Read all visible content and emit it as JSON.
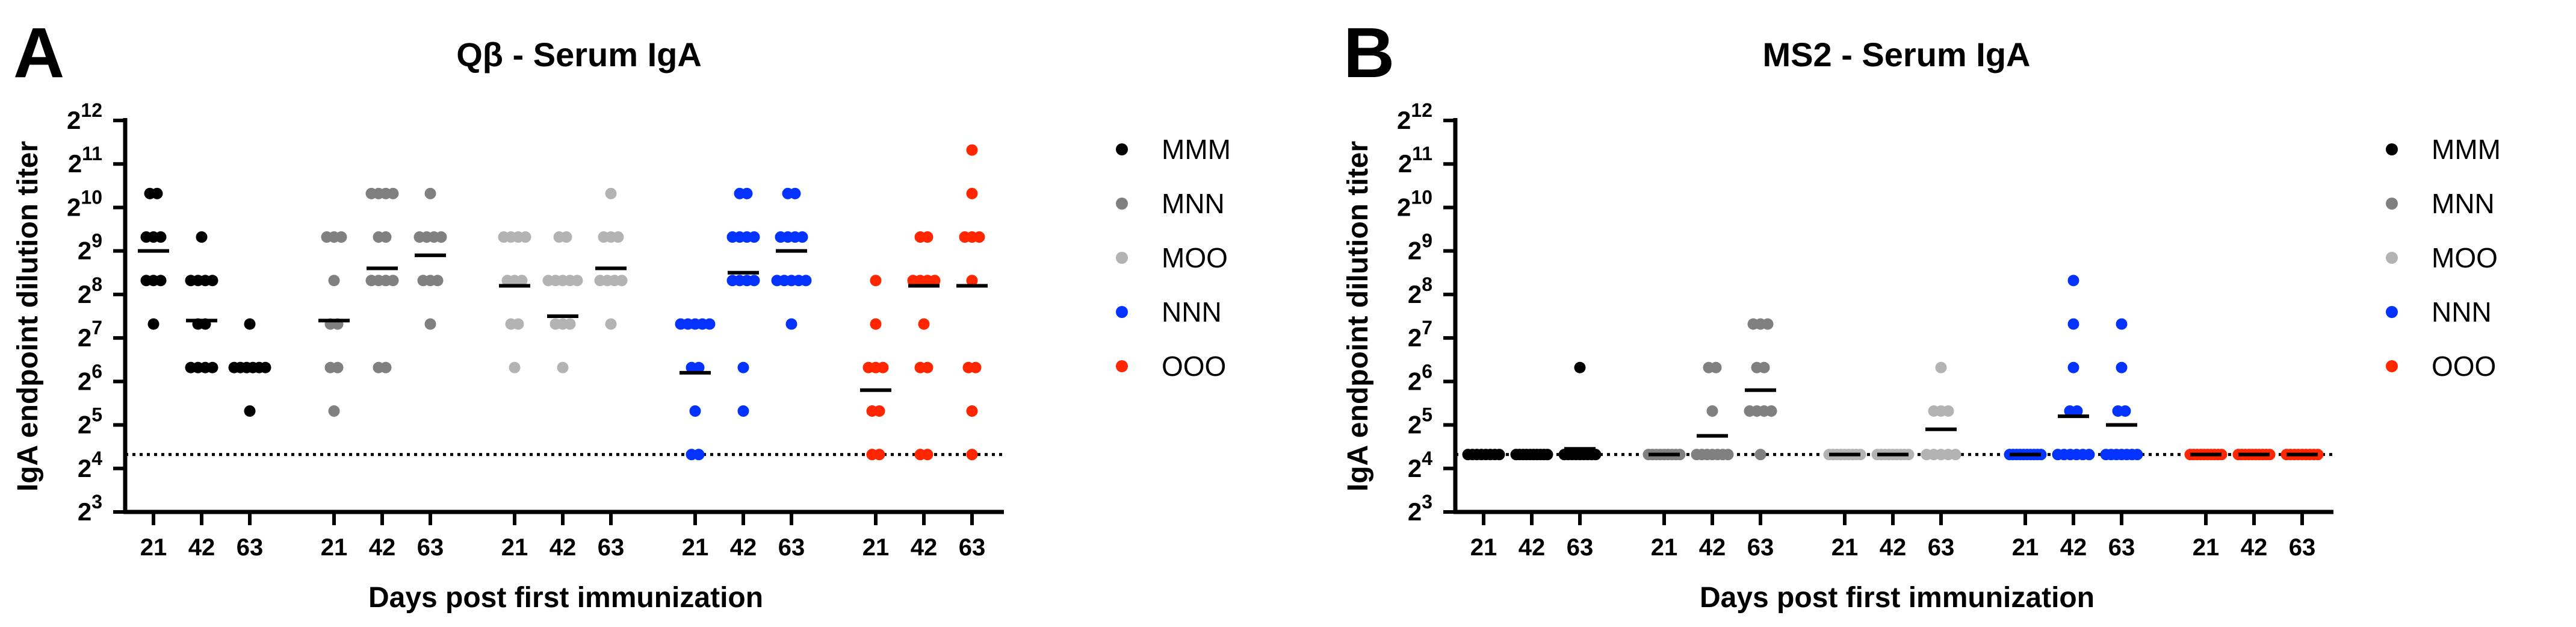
{
  "chart_data": [
    {
      "panel_letter": "A",
      "type": "scatter",
      "title": "Qβ - Serum IgA",
      "ylabel": "IgA endpoint dilution titer",
      "xlabel": "Days post first immunization",
      "y_scale": "log2",
      "y_tick_base": "2",
      "y_tick_exponents": [
        "3",
        "4",
        "5",
        "6",
        "7",
        "8",
        "9",
        "10",
        "11",
        "12"
      ],
      "ylim": [
        3,
        12
      ],
      "detection_limit": 4.32,
      "days": [
        "21",
        "42",
        "63"
      ],
      "legend": {
        "placement": "right",
        "entries": [
          "MMM",
          "MNN",
          "MOO",
          "NNN",
          "OOO"
        ]
      },
      "series": [
        {
          "name": "MMM",
          "color": "#000000",
          "points": [
            [
              10.32,
              10.32,
              9.32,
              9.32,
              9.32,
              8.32,
              8.32,
              8.32,
              7.32
            ],
            [
              9.32,
              8.32,
              8.32,
              8.32,
              8.32,
              6.32,
              6.32,
              6.32,
              6.32,
              7.32,
              7.32
            ],
            [
              7.32,
              6.32,
              6.32,
              6.32,
              6.32,
              6.32,
              6.32,
              5.32
            ]
          ],
          "means": [
            9.0,
            7.4,
            6.3
          ]
        },
        {
          "name": "MNN",
          "color": "#808080",
          "points": [
            [
              9.32,
              9.32,
              9.32,
              8.32,
              7.32,
              7.32,
              6.32,
              6.32,
              5.32
            ],
            [
              10.32,
              10.32,
              10.32,
              10.32,
              9.32,
              9.32,
              8.32,
              8.32,
              8.32,
              8.32,
              6.32,
              6.32
            ],
            [
              10.32,
              9.32,
              9.32,
              9.32,
              9.32,
              8.32,
              8.32,
              8.32,
              7.32
            ]
          ],
          "means": [
            7.4,
            8.6,
            8.9
          ]
        },
        {
          "name": "MOO",
          "color": "#b3b3b3",
          "points": [
            [
              9.32,
              9.32,
              9.32,
              9.32,
              8.32,
              8.32,
              8.32,
              7.32,
              7.32,
              6.32
            ],
            [
              9.32,
              9.32,
              8.32,
              8.32,
              8.32,
              8.32,
              8.32,
              7.32,
              7.32,
              7.32,
              6.32
            ],
            [
              10.32,
              9.32,
              9.32,
              9.32,
              8.32,
              8.32,
              8.32,
              8.32,
              7.32
            ]
          ],
          "means": [
            8.2,
            7.5,
            8.6
          ]
        },
        {
          "name": "NNN",
          "color": "#0433ff",
          "points": [
            [
              7.32,
              7.32,
              7.32,
              7.32,
              7.32,
              6.32,
              6.32,
              5.32,
              4.32,
              4.32
            ],
            [
              10.32,
              10.32,
              9.32,
              9.32,
              9.32,
              9.32,
              8.32,
              8.32,
              8.32,
              8.32,
              6.32,
              5.32
            ],
            [
              10.32,
              10.32,
              9.32,
              9.32,
              9.32,
              9.32,
              8.32,
              8.32,
              8.32,
              8.32,
              8.32,
              7.32
            ]
          ],
          "means": [
            6.2,
            8.5,
            9.0
          ]
        },
        {
          "name": "OOO",
          "color": "#ff2600",
          "points": [
            [
              8.32,
              7.32,
              6.32,
              6.32,
              6.32,
              5.32,
              5.32,
              4.32,
              4.32
            ],
            [
              9.32,
              9.32,
              8.32,
              8.32,
              8.32,
              8.32,
              7.32,
              6.32,
              6.32,
              4.32,
              4.32
            ],
            [
              11.32,
              10.32,
              9.32,
              9.32,
              9.32,
              8.32,
              6.32,
              6.32,
              5.32,
              4.32
            ]
          ],
          "means": [
            5.8,
            8.2,
            8.2
          ]
        }
      ]
    },
    {
      "panel_letter": "B",
      "type": "scatter",
      "title": "MS2 - Serum IgA",
      "ylabel": "IgA endpoint dilution titer",
      "xlabel": "Days post first immunization",
      "y_scale": "log2",
      "y_tick_base": "2",
      "y_tick_exponents": [
        "3",
        "4",
        "5",
        "6",
        "7",
        "8",
        "9",
        "10",
        "11",
        "12"
      ],
      "ylim": [
        3,
        12
      ],
      "detection_limit": 4.32,
      "days": [
        "21",
        "42",
        "63"
      ],
      "legend": {
        "placement": "right",
        "entries": [
          "MMM",
          "MNN",
          "MOO",
          "NNN",
          "OOO"
        ]
      },
      "series": [
        {
          "name": "MMM",
          "color": "#000000",
          "points": [
            [
              4.32,
              4.32,
              4.32,
              4.32,
              4.32,
              4.32,
              4.32,
              4.32
            ],
            [
              4.32,
              4.32,
              4.32,
              4.32,
              4.32,
              4.32,
              4.32,
              4.32,
              4.32,
              4.32
            ],
            [
              6.32,
              4.32,
              4.32,
              4.32,
              4.32,
              4.32,
              4.32,
              4.32,
              4.32,
              4.32
            ]
          ],
          "means": [
            4.32,
            4.32,
            4.45
          ]
        },
        {
          "name": "MNN",
          "color": "#808080",
          "points": [
            [
              4.32,
              4.32,
              4.32,
              4.32,
              4.32,
              4.32,
              4.32,
              4.32,
              4.32
            ],
            [
              6.32,
              6.32,
              5.32,
              4.32,
              4.32,
              4.32,
              4.32,
              4.32,
              4.32,
              4.32
            ],
            [
              7.32,
              7.32,
              7.32,
              6.32,
              6.32,
              5.32,
              5.32,
              5.32,
              5.32,
              4.32
            ]
          ],
          "means": [
            4.32,
            4.75,
            5.8
          ]
        },
        {
          "name": "MOO",
          "color": "#b3b3b3",
          "points": [
            [
              4.32,
              4.32,
              4.32,
              4.32,
              4.32,
              4.32,
              4.32,
              4.32,
              4.32
            ],
            [
              4.32,
              4.32,
              4.32,
              4.32,
              4.32,
              4.32,
              4.32,
              4.32,
              4.32
            ],
            [
              6.32,
              5.32,
              5.32,
              5.32,
              4.32,
              4.32,
              4.32,
              4.32,
              4.32
            ]
          ],
          "means": [
            4.32,
            4.32,
            4.9
          ]
        },
        {
          "name": "NNN",
          "color": "#0433ff",
          "points": [
            [
              4.32,
              4.32,
              4.32,
              4.32,
              4.32,
              4.32,
              4.32,
              4.32,
              4.32,
              4.32
            ],
            [
              8.32,
              7.32,
              6.32,
              5.32,
              5.32,
              4.32,
              4.32,
              4.32,
              4.32,
              4.32,
              4.32
            ],
            [
              7.32,
              6.32,
              5.32,
              5.32,
              4.32,
              4.32,
              4.32,
              4.32,
              4.32,
              4.32,
              4.32
            ]
          ],
          "means": [
            4.32,
            5.2,
            5.0
          ]
        },
        {
          "name": "OOO",
          "color": "#ff2600",
          "points": [
            [
              4.32,
              4.32,
              4.32,
              4.32,
              4.32,
              4.32,
              4.32,
              4.32,
              4.32,
              4.32
            ],
            [
              4.32,
              4.32,
              4.32,
              4.32,
              4.32,
              4.32,
              4.32,
              4.32,
              4.32,
              4.32
            ],
            [
              4.32,
              4.32,
              4.32,
              4.32,
              4.32,
              4.32,
              4.32,
              4.32,
              4.32
            ]
          ],
          "means": [
            4.32,
            4.32,
            4.32
          ]
        }
      ]
    }
  ]
}
